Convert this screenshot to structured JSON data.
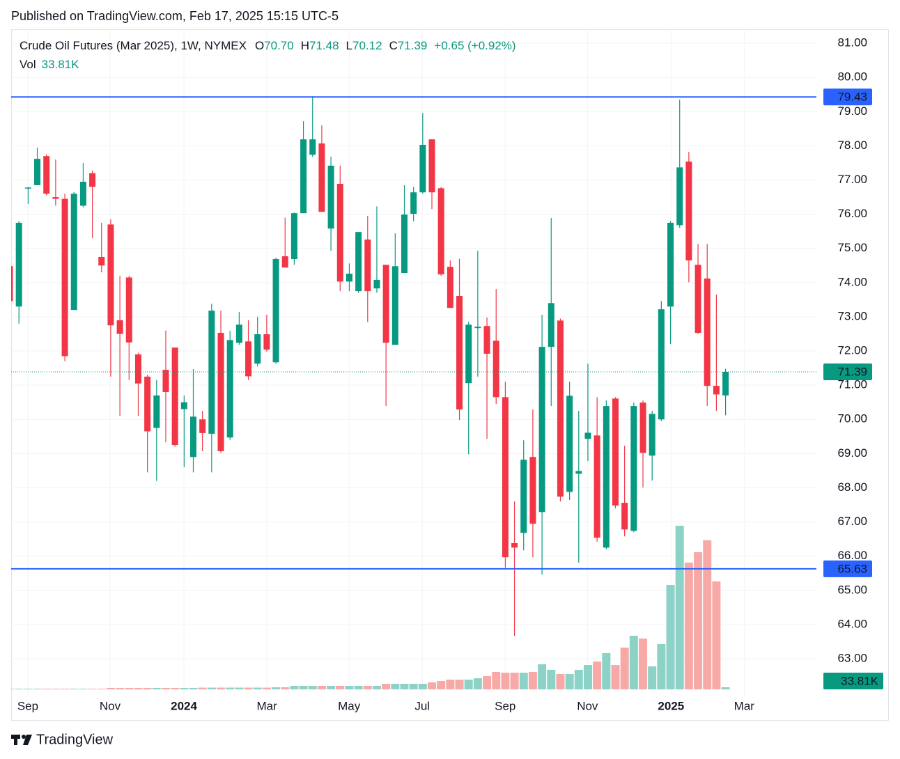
{
  "page": {
    "published": "Published on TradingView.com, Feb 17, 2025 15:15 UTC-5",
    "brand": "TradingView"
  },
  "chart_data": {
    "type": "candlestick",
    "title": "Crude Oil Futures (Mar 2025), 1W, NYMEX",
    "ohlc_legend": [
      {
        "key": "O",
        "value": "70.70"
      },
      {
        "key": "H",
        "value": "71.48"
      },
      {
        "key": "L",
        "value": "70.12"
      },
      {
        "key": "C",
        "value": "71.39"
      }
    ],
    "change": "+0.65 (+0.92%)",
    "volume_name": "Vol",
    "volume_text": "33.81K",
    "up_color": "#089981",
    "down_color": "#f23645",
    "volume_up_color": "#8dd2c7",
    "volume_down_color": "#f7a9a8",
    "open": [
      74.48,
      73.3,
      76.75,
      76.85,
      77.7,
      76.5,
      76.45,
      73.2,
      76.25,
      77.2,
      74.75,
      75.7,
      72.9,
      74.15,
      71.9,
      71.25,
      69.75,
      71.45,
      72.1,
      70.3,
      68.9,
      70.0,
      69.58,
      72.53,
      69.47,
      72.24,
      72.28,
      71.63,
      72.49,
      71.67,
      74.77,
      74.69,
      76.03,
      77.74,
      78.07,
      75.58,
      76.89,
      74.03,
      73.75,
      75.26,
      73.83,
      74.52,
      72.18,
      74.28,
      76.01,
      76.64,
      78.19,
      76.76,
      74.46,
      73.61,
      71.06,
      72.67,
      72.73,
      72.3,
      70.65,
      66.38,
      66.68,
      68.9,
      67.29,
      72.12,
      72.89,
      67.88,
      68.41,
      69.43,
      69.53,
      66.25,
      70.61,
      67.56,
      66.74,
      70.49,
      68.94,
      70.0,
      73.3,
      75.68,
      77.54,
      74.52,
      74.12,
      70.98,
      70.7
    ],
    "high": [
      74.6,
      75.8,
      76.8,
      77.95,
      77.75,
      77.6,
      76.6,
      76.65,
      77.5,
      77.28,
      75.75,
      75.85,
      74.2,
      74.2,
      71.95,
      71.3,
      71.15,
      72.6,
      72.1,
      70.7,
      71.47,
      70.25,
      73.38,
      73.18,
      72.59,
      73.14,
      72.9,
      73.0,
      73.06,
      74.73,
      75.9,
      76.05,
      78.72,
      79.45,
      78.6,
      77.68,
      77.42,
      74.56,
      75.48,
      75.95,
      76.23,
      74.52,
      75.44,
      76.85,
      76.8,
      78.96,
      78.19,
      76.8,
      74.65,
      74.7,
      72.85,
      74.93,
      72.98,
      73.81,
      71.1,
      67.6,
      69.39,
      70.29,
      73.06,
      75.89,
      72.95,
      71.1,
      70.25,
      71.63,
      70.65,
      70.55,
      70.65,
      69.23,
      70.49,
      70.55,
      70.25,
      73.46,
      75.8,
      79.35,
      77.82,
      75.13,
      75.13,
      73.65,
      71.48
    ],
    "low": [
      73.4,
      72.8,
      76.3,
      76.85,
      76.55,
      76.25,
      71.7,
      73.2,
      76.2,
      75.3,
      74.3,
      71.25,
      70.1,
      71.15,
      70.1,
      68.45,
      68.2,
      69.33,
      69.2,
      68.6,
      68.45,
      69.07,
      68.45,
      69.02,
      69.4,
      72.18,
      71.15,
      71.55,
      71.98,
      71.63,
      74.44,
      74.52,
      76.03,
      77.68,
      76.07,
      74.93,
      73.75,
      73.75,
      73.7,
      72.85,
      73.7,
      70.39,
      72.18,
      74.28,
      75.79,
      76.6,
      76.15,
      74.2,
      73.26,
      69.98,
      68.98,
      71.25,
      69.43,
      70.45,
      65.66,
      63.67,
      66.17,
      65.97,
      65.46,
      70.39,
      67.6,
      67.64,
      65.81,
      68.78,
      66.42,
      66.2,
      67.4,
      66.58,
      66.7,
      68.01,
      68.21,
      69.95,
      72.2,
      75.6,
      74.01,
      72.5,
      70.39,
      70.25,
      70.12
    ],
    "close": [
      73.46,
      75.75,
      76.78,
      77.62,
      76.6,
      76.45,
      71.85,
      76.6,
      76.95,
      76.8,
      74.5,
      72.75,
      72.5,
      72.25,
      71.05,
      69.65,
      70.7,
      70.8,
      69.25,
      70.5,
      70.08,
      69.6,
      73.18,
      69.07,
      72.32,
      72.77,
      71.26,
      72.49,
      72.04,
      74.69,
      74.44,
      76.03,
      78.19,
      78.19,
      76.07,
      77.42,
      74.03,
      74.26,
      75.48,
      73.75,
      74.08,
      72.24,
      74.48,
      75.99,
      76.64,
      78.03,
      76.64,
      74.24,
      73.26,
      70.29,
      72.77,
      72.71,
      71.92,
      70.65,
      65.97,
      66.25,
      68.82,
      66.95,
      72.12,
      73.4,
      67.74,
      70.69,
      68.49,
      69.61,
      66.54,
      70.39,
      67.48,
      66.78,
      70.39,
      69.02,
      70.16,
      73.22,
      75.75,
      77.37,
      74.65,
      72.53,
      70.98,
      70.73,
      71.39
    ],
    "volume": [
      11,
      11,
      11,
      11,
      11,
      11,
      11,
      11,
      11,
      11,
      11,
      23,
      23,
      23,
      23,
      23,
      23,
      23,
      23,
      23,
      23,
      28,
      28,
      28,
      28,
      28,
      28,
      28,
      28,
      34,
      34,
      56,
      56,
      56,
      56,
      56,
      56,
      56,
      56,
      56,
      56,
      90,
      90,
      90,
      90,
      90,
      113,
      135,
      158,
      158,
      158,
      180,
      214,
      282,
      270,
      270,
      270,
      282,
      406,
      316,
      248,
      248,
      316,
      394,
      451,
      586,
      394,
      676,
      868,
      823,
      372,
      733,
      1690,
      2648,
      2051,
      2220,
      2412,
      1747,
      33.81
    ],
    "volume_last_label": "33.81K",
    "last_price": {
      "value": 71.39,
      "label": "71.39"
    },
    "levels": [
      {
        "value": 79.43,
        "label": "79.43",
        "color": "#2962ff"
      },
      {
        "value": 65.63,
        "label": "65.63",
        "color": "#2962ff"
      }
    ],
    "ylim": [
      61.9,
      81.41
    ],
    "yticks": [
      {
        "value": 63,
        "label": "63.00"
      },
      {
        "value": 64,
        "label": "64.00"
      },
      {
        "value": 65,
        "label": "65.00"
      },
      {
        "value": 66,
        "label": "66.00"
      },
      {
        "value": 67,
        "label": "67.00"
      },
      {
        "value": 68,
        "label": "68.00"
      },
      {
        "value": 69,
        "label": "69.00"
      },
      {
        "value": 70,
        "label": "70.00"
      },
      {
        "value": 71,
        "label": "71.00"
      },
      {
        "value": 72,
        "label": "72.00"
      },
      {
        "value": 73,
        "label": "73.00"
      },
      {
        "value": 74,
        "label": "74.00"
      },
      {
        "value": 75,
        "label": "75.00"
      },
      {
        "value": 76,
        "label": "76.00"
      },
      {
        "value": 77,
        "label": "77.00"
      },
      {
        "value": 78,
        "label": "78.00"
      },
      {
        "value": 79,
        "label": "79.00"
      },
      {
        "value": 80,
        "label": "80.00"
      },
      {
        "value": 81,
        "label": "81.00"
      }
    ],
    "xlim": [
      0.15,
      87.9
    ],
    "xticks": [
      {
        "value": 1.97,
        "label": "Sep"
      },
      {
        "value": 10.93,
        "label": "Nov"
      },
      {
        "value": 18.98,
        "label": "2024",
        "bold": true
      },
      {
        "value": 28.02,
        "label": "Mar"
      },
      {
        "value": 36.98,
        "label": "May"
      },
      {
        "value": 44.95,
        "label": "Jul"
      },
      {
        "value": 53.99,
        "label": "Sep"
      },
      {
        "value": 62.95,
        "label": "Nov"
      },
      {
        "value": 72.06,
        "label": "2025",
        "bold": true
      },
      {
        "value": 80.03,
        "label": "Mar"
      }
    ],
    "grid": true
  }
}
